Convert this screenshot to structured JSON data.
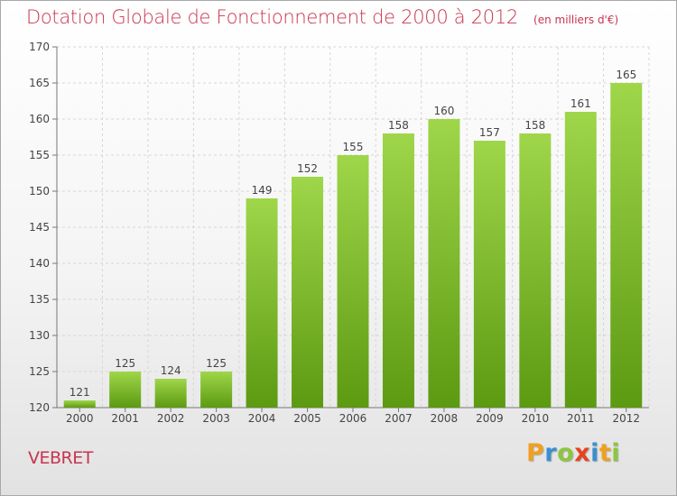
{
  "title": "Dotation Globale de Fonctionnement de 2000 à 2012",
  "unit": "(en milliers d'€)",
  "commune": "VEBRET",
  "logo": {
    "letters": [
      "P",
      "r",
      "o",
      "x",
      "i",
      "t",
      "i"
    ],
    "colors": [
      "#f0a020",
      "#3a8fd0",
      "#8cc63f",
      "#e8421c",
      "#3a8fd0",
      "#f0a020",
      "#8cc63f"
    ]
  },
  "colors": {
    "bar_top": "#9fd64a",
    "bar_bottom": "#5c9a12",
    "text": "#c8344f"
  },
  "chart_data": {
    "type": "bar",
    "categories": [
      "2000",
      "2001",
      "2002",
      "2003",
      "2004",
      "2005",
      "2006",
      "2007",
      "2008",
      "2009",
      "2010",
      "2011",
      "2012"
    ],
    "values": [
      121,
      125,
      124,
      125,
      149,
      152,
      155,
      158,
      160,
      157,
      158,
      161,
      165
    ],
    "ylim": [
      120,
      170
    ],
    "yticks": [
      120,
      125,
      130,
      135,
      140,
      145,
      150,
      155,
      160,
      165,
      170
    ],
    "grid": true,
    "data_labels": true
  }
}
